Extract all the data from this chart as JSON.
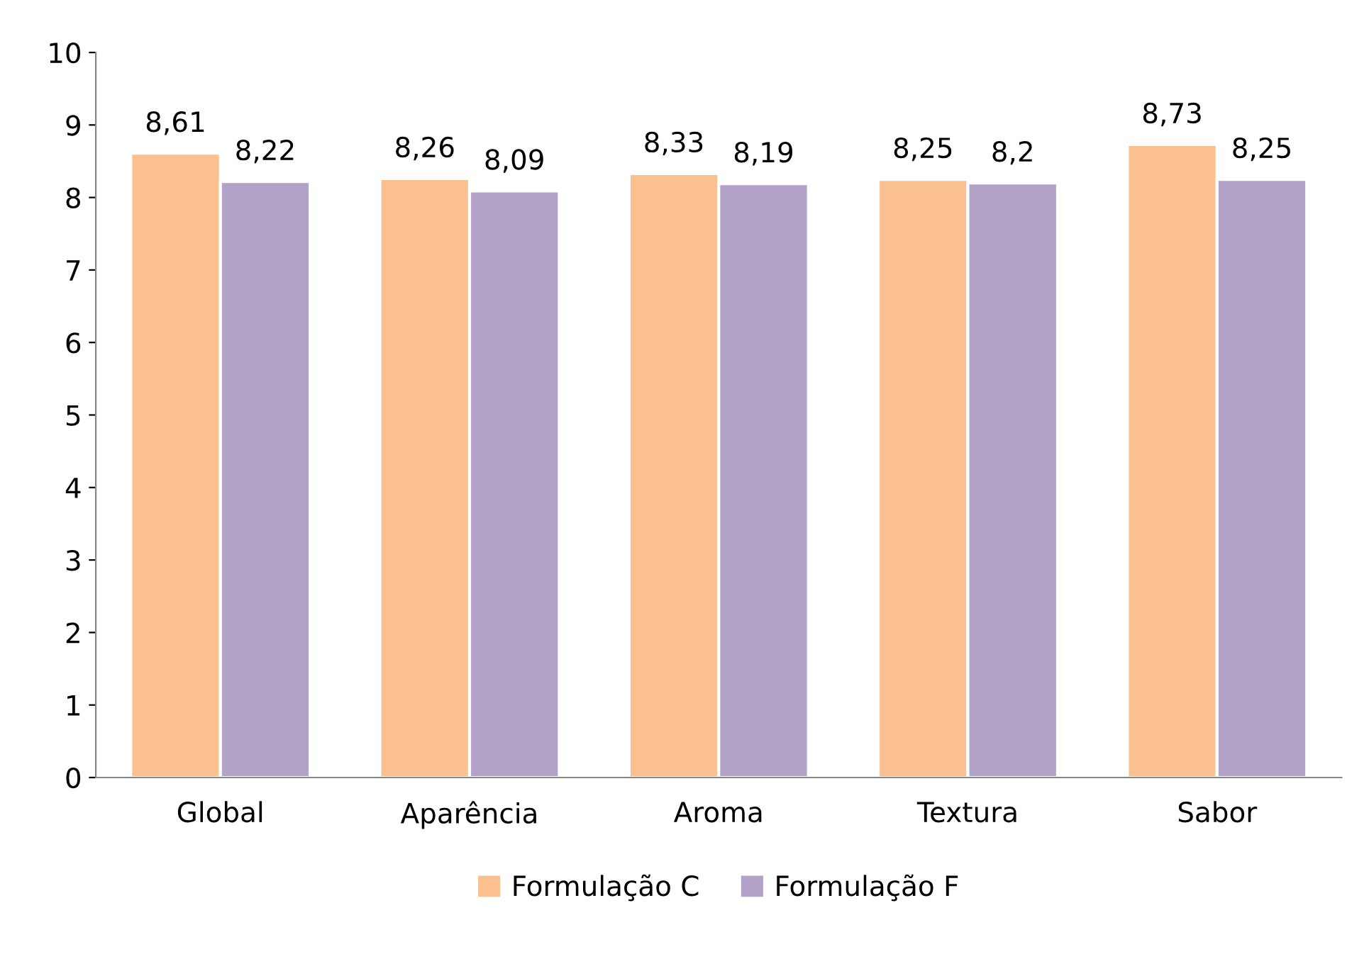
{
  "chart_data": {
    "type": "bar",
    "categories": [
      "Global",
      "Aparência",
      "Aroma",
      "Textura",
      "Sabor"
    ],
    "series": [
      {
        "name": "Formulação C",
        "color": "#fac090",
        "values": [
          8.61,
          8.26,
          8.33,
          8.25,
          8.73
        ],
        "value_labels": [
          "8,61",
          "8,26",
          "8,33",
          "8,25",
          "8,73"
        ]
      },
      {
        "name": "Formulação F",
        "color": "#b3a2c7",
        "values": [
          8.22,
          8.09,
          8.19,
          8.2,
          8.25
        ],
        "value_labels": [
          "8,22",
          "8,09",
          "8,19",
          "8,2",
          "8,25"
        ]
      }
    ],
    "ylim": [
      0,
      10
    ],
    "yticks": [
      0,
      1,
      2,
      3,
      4,
      5,
      6,
      7,
      8,
      9,
      10
    ],
    "grid": false,
    "legend": "bottom"
  }
}
